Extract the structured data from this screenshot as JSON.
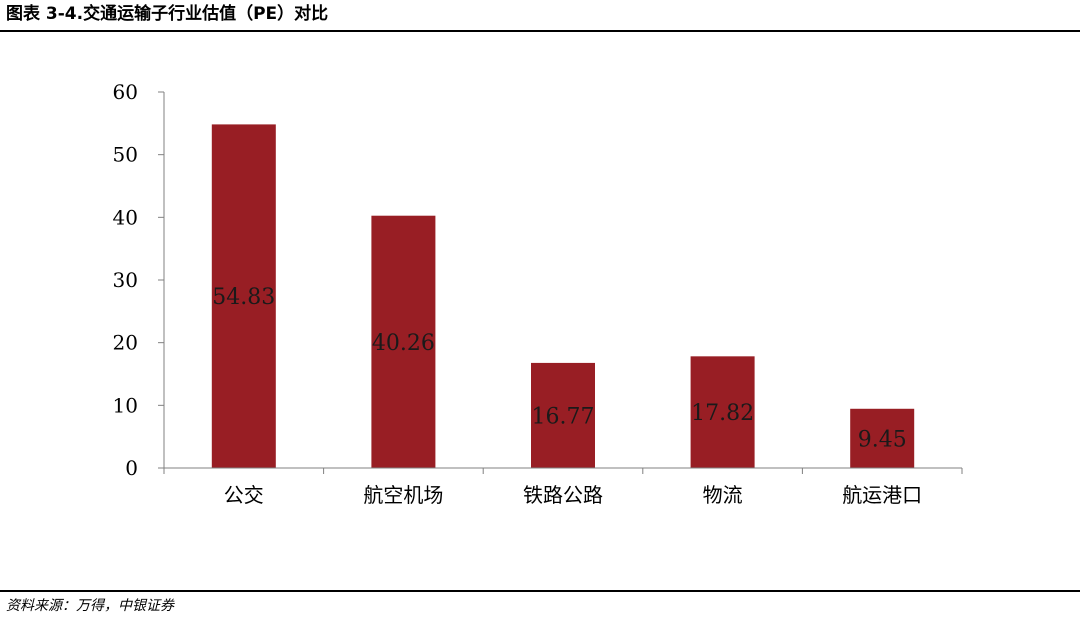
{
  "header": {
    "title": "图表 3-4.交通运输子行业估值（PE）对比"
  },
  "footer": {
    "source": "资料来源：万得，中银证券"
  },
  "chart_data": {
    "type": "bar",
    "title": "",
    "xlabel": "",
    "ylabel": "",
    "categories": [
      "公交",
      "航空机场",
      "铁路公路",
      "物流",
      "航运港口"
    ],
    "series": [
      {
        "values": [
          54.83,
          40.26,
          16.77,
          17.82,
          9.45
        ]
      }
    ],
    "data_labels": [
      "54.83",
      "40.26",
      "16.77",
      "17.82",
      "9.45"
    ],
    "ylim": [
      0,
      60
    ],
    "yticks": [
      0,
      10,
      20,
      30,
      40,
      50,
      60
    ],
    "grid": false,
    "legend": "none",
    "colors": {
      "bar": "#981E24",
      "axis": "#808080"
    }
  }
}
